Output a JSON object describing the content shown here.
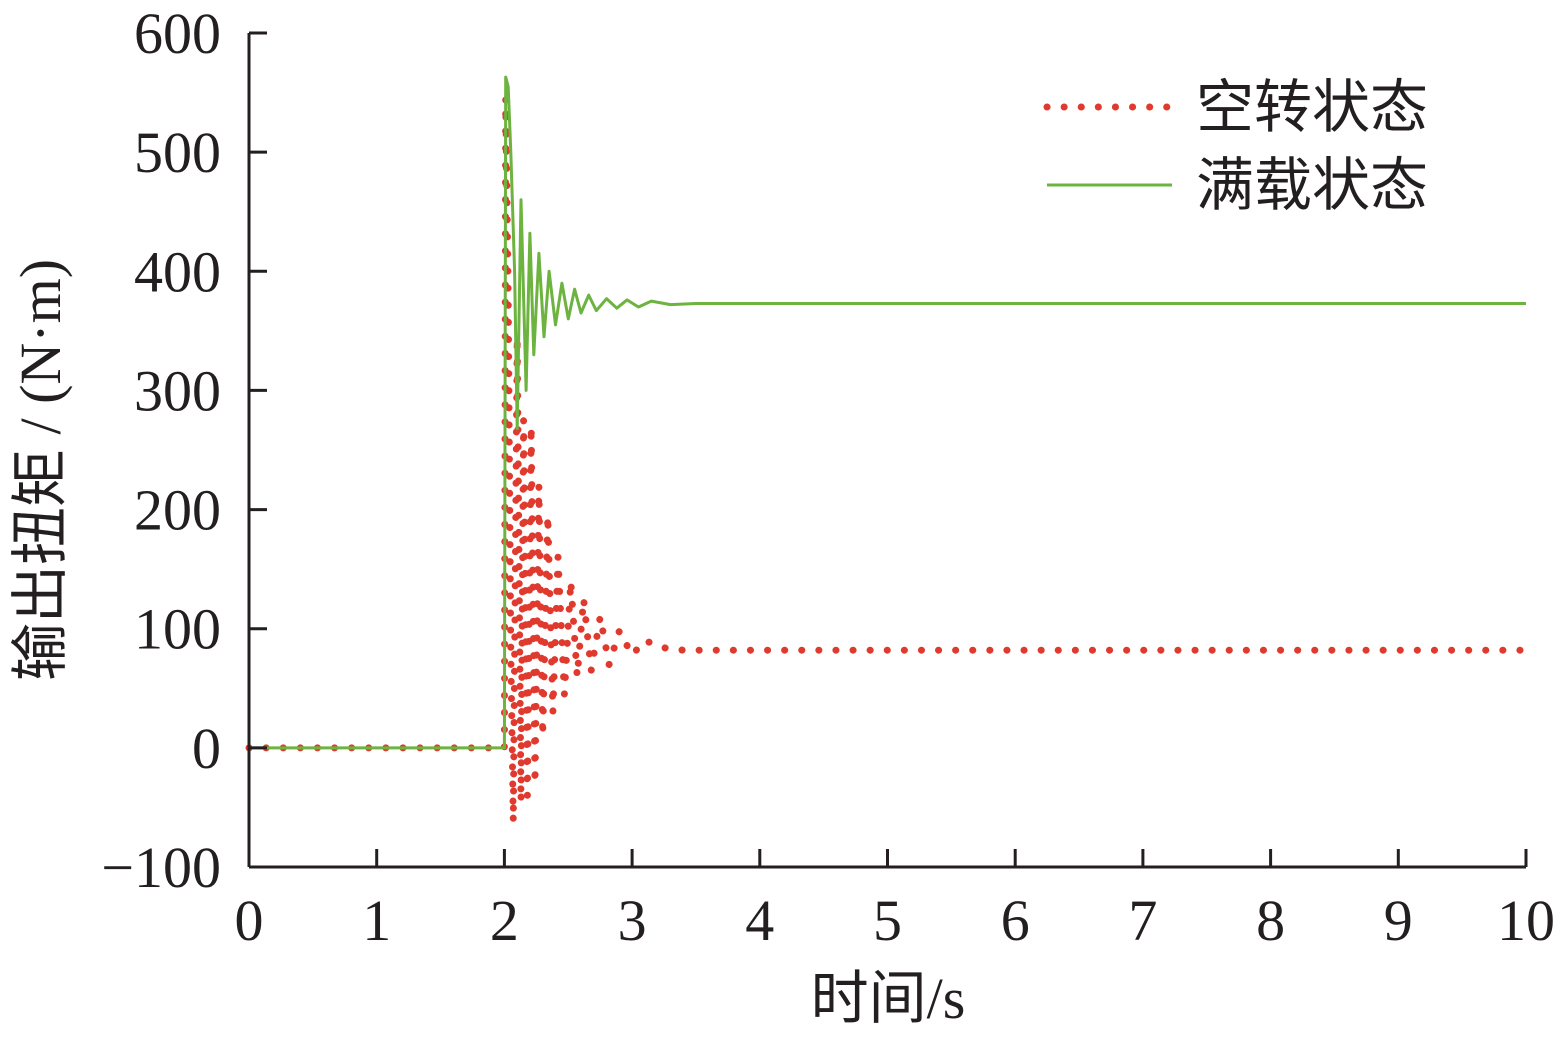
{
  "chart_data": {
    "type": "line",
    "xlabel": "时间/s",
    "ylabel": "输出扭矩 / (N·m)",
    "xlim": [
      0,
      10
    ],
    "ylim": [
      -100,
      600
    ],
    "xticks": [
      0,
      1,
      2,
      3,
      4,
      5,
      6,
      7,
      8,
      9,
      10
    ],
    "xtick_labels": [
      "0",
      "1",
      "2",
      "3",
      "4",
      "5",
      "6",
      "7",
      "8",
      "9",
      "10"
    ],
    "yticks": [
      -100,
      0,
      100,
      200,
      300,
      400,
      500,
      600
    ],
    "ytick_labels": [
      "−100",
      "0",
      "100",
      "200",
      "300",
      "400",
      "500",
      "600"
    ],
    "grid": false,
    "legend_position": "top-right",
    "series": [
      {
        "name": "空转状态",
        "style": "dotted",
        "color": "#e03a2f",
        "x": [
          0,
          0.5,
          1.0,
          1.5,
          1.98,
          2.0,
          2.01,
          2.03,
          2.05,
          2.07,
          2.1,
          2.13,
          2.15,
          2.18,
          2.21,
          2.24,
          2.27,
          2.3,
          2.34,
          2.38,
          2.42,
          2.47,
          2.52,
          2.57,
          2.62,
          2.68,
          2.75,
          2.82,
          2.9,
          3.0,
          3.1,
          3.25,
          3.4,
          4.0,
          5.0,
          6.0,
          7.0,
          8.0,
          9.0,
          10.0
        ],
        "y": [
          0,
          0,
          0,
          0,
          0,
          0,
          545,
          380,
          80,
          -62,
          345,
          -45,
          275,
          -40,
          270,
          -30,
          220,
          10,
          195,
          30,
          160,
          45,
          140,
          60,
          125,
          65,
          110,
          70,
          98,
          78,
          90,
          84,
          82,
          82,
          82,
          82,
          82,
          82,
          82,
          82
        ]
      },
      {
        "name": "满载状态",
        "style": "solid",
        "color": "#6db33f",
        "x": [
          0,
          1.0,
          1.98,
          2.0,
          2.01,
          2.03,
          2.05,
          2.08,
          2.1,
          2.13,
          2.17,
          2.2,
          2.23,
          2.27,
          2.31,
          2.35,
          2.4,
          2.45,
          2.5,
          2.55,
          2.6,
          2.66,
          2.72,
          2.8,
          2.88,
          2.96,
          3.05,
          3.15,
          3.3,
          3.5,
          3.8,
          4.0,
          5.0,
          6.0,
          7.0,
          8.0,
          9.0,
          10.0
        ],
        "y": [
          0,
          0,
          0,
          0,
          563,
          555,
          500,
          400,
          268,
          460,
          300,
          432,
          330,
          415,
          345,
          400,
          355,
          390,
          360,
          385,
          365,
          380,
          367,
          377,
          369,
          376,
          370,
          375,
          372,
          373,
          373,
          373,
          373,
          373,
          373,
          373,
          373,
          373
        ]
      }
    ]
  }
}
